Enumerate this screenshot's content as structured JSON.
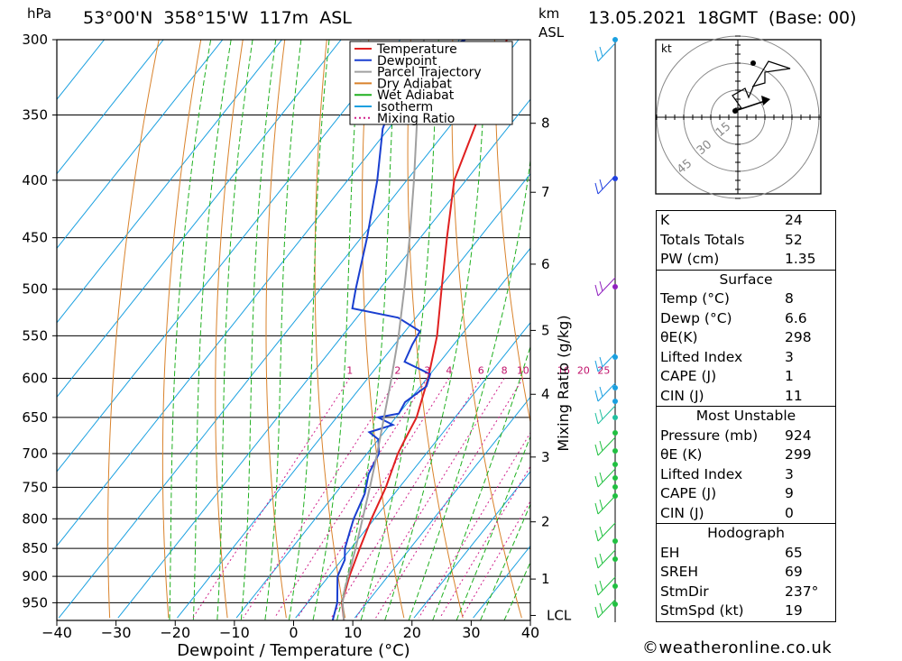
{
  "header": {
    "hpa_unit": "hPa",
    "location": "53°00'N  358°15'W  117m  ASL",
    "km_unit": "km",
    "asl_unit": "ASL",
    "datetime": "13.05.2021  18GMT  (Base: 00)"
  },
  "legend": [
    {
      "label": "Temperature",
      "color": "#e02020",
      "style": "solid"
    },
    {
      "label": "Dewpoint",
      "color": "#1a3fd0",
      "style": "solid"
    },
    {
      "label": "Parcel Trajectory",
      "color": "#a0a0a0",
      "style": "solid"
    },
    {
      "label": "Dry Adiabat",
      "color": "#d9822b",
      "style": "solid"
    },
    {
      "label": "Wet Adiabat",
      "color": "#20b020",
      "style": "solid"
    },
    {
      "label": "Isotherm",
      "color": "#1aa0e0",
      "style": "solid"
    },
    {
      "label": "Mixing Ratio",
      "color": "#d0208a",
      "style": "dotted"
    }
  ],
  "chart_data": {
    "type": "line",
    "xlabel": "Dewpoint / Temperature (°C)",
    "ylabel": "hPa",
    "xlim": [
      -40,
      40
    ],
    "x_ticks": [
      "−40",
      "−30",
      "−20",
      "−10",
      "0",
      "10",
      "20",
      "30",
      "40"
    ],
    "pressure_levels": [
      "300",
      "350",
      "400",
      "450",
      "500",
      "550",
      "600",
      "650",
      "700",
      "750",
      "800",
      "850",
      "900",
      "950"
    ],
    "height_axis": {
      "label": "km ASL",
      "ticks": [
        "8",
        "7",
        "6",
        "5",
        "4",
        "3",
        "2",
        "1"
      ],
      "lcl_label": "LCL"
    },
    "mixing_ratio_axis_label": "Mixing Ratio (g/kg)",
    "mixing_ratio_labels": [
      "1",
      "2",
      "3",
      "4",
      "6",
      "8",
      "10",
      "16",
      "20",
      "25"
    ],
    "series": [
      {
        "name": "Temperature",
        "color": "#e02020",
        "points": [
          [
            985,
            8.5
          ],
          [
            950,
            5.8
          ],
          [
            900,
            3.5
          ],
          [
            850,
            1.5
          ],
          [
            800,
            -0.5
          ],
          [
            750,
            -2.3
          ],
          [
            700,
            -4.8
          ],
          [
            680,
            -5.5
          ],
          [
            650,
            -6.5
          ],
          [
            600,
            -9.8
          ],
          [
            550,
            -14.0
          ],
          [
            500,
            -19.5
          ],
          [
            450,
            -25.5
          ],
          [
            400,
            -32.0
          ],
          [
            350,
            -36.5
          ],
          [
            300,
            -42.0
          ]
        ]
      },
      {
        "name": "Dewpoint",
        "color": "#1a3fd0",
        "points": [
          [
            985,
            6.6
          ],
          [
            950,
            5.0
          ],
          [
            900,
            1.5
          ],
          [
            870,
            0.5
          ],
          [
            850,
            -1.0
          ],
          [
            820,
            -2.5
          ],
          [
            800,
            -3.5
          ],
          [
            760,
            -5.0
          ],
          [
            730,
            -7.0
          ],
          [
            700,
            -8.0
          ],
          [
            680,
            -10.0
          ],
          [
            670,
            -12.5
          ],
          [
            660,
            -9.5
          ],
          [
            650,
            -13.0
          ],
          [
            645,
            -10.0
          ],
          [
            630,
            -10.5
          ],
          [
            610,
            -9.0
          ],
          [
            595,
            -10.0
          ],
          [
            580,
            -16.0
          ],
          [
            560,
            -17.0
          ],
          [
            545,
            -17.5
          ],
          [
            530,
            -23.0
          ],
          [
            520,
            -32.0
          ],
          [
            500,
            -34.0
          ],
          [
            450,
            -39.0
          ],
          [
            400,
            -45.0
          ],
          [
            360,
            -51.0
          ],
          [
            340,
            -53.0
          ],
          [
            310,
            -53.0
          ],
          [
            300,
            -49.0
          ]
        ]
      },
      {
        "name": "Parcel Trajectory",
        "color": "#a0a0a0",
        "points": [
          [
            985,
            8.5
          ],
          [
            950,
            5.9
          ],
          [
            925,
            4.5
          ],
          [
            900,
            3.3
          ],
          [
            850,
            0.8
          ],
          [
            800,
            -2.0
          ],
          [
            750,
            -5.0
          ],
          [
            700,
            -8.3
          ],
          [
            650,
            -12.0
          ],
          [
            600,
            -16.0
          ],
          [
            550,
            -20.5
          ],
          [
            500,
            -25.8
          ],
          [
            450,
            -31.8
          ],
          [
            400,
            -38.8
          ],
          [
            350,
            -47.0
          ],
          [
            300,
            -56.0
          ]
        ]
      }
    ]
  },
  "hodograph": {
    "unit": "kt",
    "ring_labels": [
      "15",
      "30",
      "45"
    ]
  },
  "indices": {
    "top": [
      {
        "label": "K",
        "value": "24"
      },
      {
        "label": "Totals Totals",
        "value": "52"
      },
      {
        "label": "PW (cm)",
        "value": "1.35"
      }
    ],
    "surface_title": "Surface",
    "surface": [
      {
        "label": "Temp (°C)",
        "value": "8"
      },
      {
        "label": "Dewp (°C)",
        "value": "6.6"
      },
      {
        "label": "θE(K)",
        "value": "298"
      },
      {
        "label": "Lifted Index",
        "value": "3"
      },
      {
        "label": "CAPE (J)",
        "value": "1"
      },
      {
        "label": "CIN (J)",
        "value": "11"
      }
    ],
    "mu_title": "Most Unstable",
    "most_unstable": [
      {
        "label": "Pressure (mb)",
        "value": "924"
      },
      {
        "label": "θE (K)",
        "value": "299"
      },
      {
        "label": "Lifted Index",
        "value": "3"
      },
      {
        "label": "CAPE (J)",
        "value": "9"
      },
      {
        "label": "CIN (J)",
        "value": "0"
      }
    ],
    "hodo_title": "Hodograph",
    "hodo": [
      {
        "label": "EH",
        "value": "65"
      },
      {
        "label": "SREH",
        "value": "69"
      },
      {
        "label": "StmDir",
        "value": "237°"
      },
      {
        "label": "StmSpd (kt)",
        "value": "19"
      }
    ]
  },
  "credit": "©weatheronline.co.uk"
}
